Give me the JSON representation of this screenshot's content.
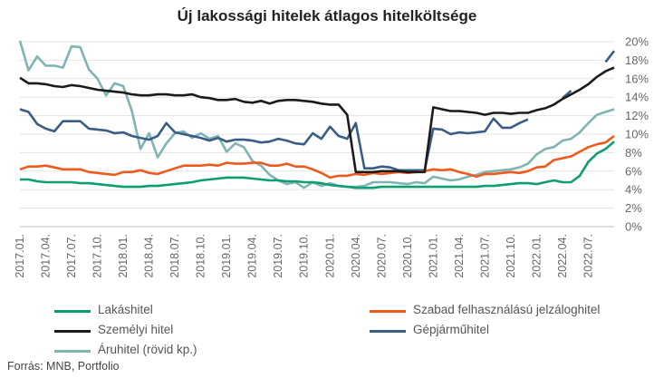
{
  "chart_data": {
    "type": "line",
    "title": "Új lakossági hitelek átlagos hitelköltsége",
    "source": "Forrás: MNB, Portfolio",
    "xlabel": "",
    "ylabel": "",
    "ylim": [
      0,
      20
    ],
    "yticks": [
      "0%",
      "2%",
      "4%",
      "6%",
      "8%",
      "10%",
      "12%",
      "14%",
      "16%",
      "18%",
      "20%"
    ],
    "grid": true,
    "legend_position": "bottom",
    "x_tick_labels": [
      "2017.01.",
      "2017.04.",
      "2017.07.",
      "2017.10.",
      "2018.01.",
      "2018.04.",
      "2018.07.",
      "2018.10.",
      "2019.01.",
      "2019.04.",
      "2019.07.",
      "2019.10.",
      "2020.01.",
      "2020.04.",
      "2020.07.",
      "2020.10.",
      "2021.01.",
      "2021.04.",
      "2021.07.",
      "2021.10.",
      "2022.01.",
      "2022.04.",
      "2022.07."
    ],
    "months": [
      "2017.01.",
      "2017.02.",
      "2017.03.",
      "2017.04.",
      "2017.05.",
      "2017.06.",
      "2017.07.",
      "2017.08.",
      "2017.09.",
      "2017.10.",
      "2017.11.",
      "2017.12.",
      "2018.01.",
      "2018.02.",
      "2018.03.",
      "2018.04.",
      "2018.05.",
      "2018.06.",
      "2018.07.",
      "2018.08.",
      "2018.09.",
      "2018.10.",
      "2018.11.",
      "2018.12.",
      "2019.01.",
      "2019.02.",
      "2019.03.",
      "2019.04.",
      "2019.05.",
      "2019.06.",
      "2019.07.",
      "2019.08.",
      "2019.09.",
      "2019.10.",
      "2019.11.",
      "2019.12.",
      "2020.01.",
      "2020.02.",
      "2020.03.",
      "2020.04.",
      "2020.05.",
      "2020.06.",
      "2020.07.",
      "2020.08.",
      "2020.09.",
      "2020.10.",
      "2020.11.",
      "2020.12.",
      "2021.01.",
      "2021.02.",
      "2021.03.",
      "2021.04.",
      "2021.05.",
      "2021.06.",
      "2021.07.",
      "2021.08.",
      "2021.09.",
      "2021.10.",
      "2021.11.",
      "2021.12.",
      "2022.01.",
      "2022.02.",
      "2022.03.",
      "2022.04.",
      "2022.05.",
      "2022.06.",
      "2022.07.",
      "2022.08.",
      "2022.09.",
      "2022.10."
    ],
    "series": [
      {
        "name": "Lakáshitel",
        "color": "#0f9e74",
        "values": [
          5.1,
          5.1,
          4.9,
          4.8,
          4.8,
          4.8,
          4.8,
          4.7,
          4.7,
          4.6,
          4.5,
          4.4,
          4.3,
          4.3,
          4.3,
          4.4,
          4.4,
          4.5,
          4.6,
          4.7,
          4.8,
          5.0,
          5.1,
          5.2,
          5.3,
          5.3,
          5.3,
          5.2,
          5.1,
          5.0,
          5.0,
          4.9,
          4.9,
          4.8,
          4.8,
          4.7,
          4.5,
          4.4,
          4.3,
          4.2,
          4.2,
          4.2,
          4.3,
          4.3,
          4.3,
          4.3,
          4.3,
          4.3,
          4.3,
          4.3,
          4.3,
          4.3,
          4.3,
          4.3,
          4.4,
          4.4,
          4.5,
          4.6,
          4.7,
          4.7,
          4.6,
          4.8,
          5.0,
          4.8,
          4.8,
          5.5,
          7.0,
          7.9,
          8.4,
          9.2
        ]
      },
      {
        "name": "Szabad felhasználású jelzáloghitel",
        "color": "#ee5a1e",
        "values": [
          6.2,
          6.5,
          6.5,
          6.6,
          6.4,
          6.2,
          6.2,
          6.2,
          5.9,
          5.8,
          5.7,
          5.6,
          5.9,
          5.9,
          6.1,
          5.8,
          5.7,
          6.0,
          6.3,
          6.6,
          6.6,
          6.6,
          6.7,
          6.6,
          6.9,
          6.8,
          6.8,
          6.9,
          6.9,
          6.6,
          6.6,
          6.8,
          6.5,
          6.5,
          6.2,
          5.8,
          5.3,
          5.5,
          5.5,
          5.7,
          5.6,
          5.8,
          5.7,
          5.8,
          5.9,
          5.8,
          5.9,
          6.0,
          6.2,
          6.1,
          6.2,
          5.9,
          5.7,
          5.4,
          5.7,
          5.7,
          5.8,
          5.9,
          5.8,
          6.0,
          6.4,
          6.5,
          7.2,
          7.4,
          7.6,
          8.1,
          8.6,
          8.9,
          9.1,
          9.8
        ]
      },
      {
        "name": "Személyi hitel",
        "color": "#1b1b1b",
        "values": [
          16.1,
          15.5,
          15.5,
          15.4,
          15.2,
          15.1,
          15.3,
          15.2,
          15.0,
          14.8,
          14.7,
          14.6,
          14.5,
          14.3,
          14.2,
          14.2,
          14.3,
          14.3,
          14.2,
          14.2,
          14.3,
          14.0,
          13.9,
          13.7,
          13.7,
          13.8,
          13.5,
          13.4,
          13.6,
          13.3,
          13.6,
          13.7,
          13.7,
          13.6,
          13.5,
          13.3,
          13.2,
          13.2,
          12.1,
          5.9,
          5.9,
          5.9,
          6.0,
          6.0,
          6.0,
          5.9,
          5.9,
          5.9,
          12.9,
          12.7,
          12.5,
          12.5,
          12.4,
          12.3,
          12.1,
          12.3,
          12.3,
          12.2,
          12.3,
          12.3,
          12.6,
          12.8,
          13.2,
          13.8,
          14.3,
          14.8,
          15.4,
          16.2,
          16.8,
          17.2
        ]
      },
      {
        "name": "Gépjárműhitel",
        "color": "#3a5d86",
        "values": [
          12.7,
          12.4,
          11.1,
          10.6,
          10.3,
          11.4,
          11.4,
          11.4,
          10.6,
          10.5,
          10.4,
          10.1,
          10.2,
          9.8,
          9.6,
          9.4,
          9.8,
          11.2,
          10.2,
          10.0,
          9.8,
          9.6,
          9.3,
          9.6,
          9.2,
          9.4,
          9.4,
          9.3,
          9.1,
          9.2,
          9.5,
          9.3,
          9.0,
          8.9,
          10.1,
          9.5,
          10.8,
          9.8,
          9.5,
          11.2,
          6.3,
          6.3,
          6.5,
          6.4,
          6.1,
          6.1,
          6.1,
          6.1,
          10.6,
          10.5,
          10.0,
          10.2,
          10.1,
          10.2,
          10.3,
          11.7,
          10.7,
          10.7,
          11.2,
          11.6,
          null,
          null,
          null,
          13.9,
          14.7,
          null,
          null,
          null,
          17.8,
          19.0
        ]
      },
      {
        "name": "Áruhitel (rövid kp.)",
        "color": "#7fb4b2",
        "values": [
          20.1,
          16.9,
          18.4,
          17.4,
          17.4,
          17.2,
          19.5,
          19.4,
          17.0,
          16.0,
          14.2,
          15.5,
          15.2,
          12.5,
          8.4,
          10.1,
          7.5,
          9.0,
          10.1,
          10.3,
          9.6,
          10.1,
          9.5,
          9.8,
          8.1,
          9.0,
          8.6,
          7.1,
          6.6,
          5.6,
          5.0,
          4.6,
          4.8,
          4.2,
          4.8,
          4.4,
          4.7,
          4.4,
          4.3,
          4.3,
          4.4,
          4.8,
          4.8,
          4.8,
          4.7,
          4.6,
          4.8,
          4.7,
          5.4,
          5.2,
          5.0,
          5.1,
          5.4,
          5.6,
          5.9,
          6.0,
          6.1,
          6.2,
          6.4,
          6.8,
          7.8,
          8.4,
          8.6,
          9.3,
          9.5,
          10.2,
          11.2,
          12.1,
          12.4,
          12.7
        ]
      }
    ]
  }
}
